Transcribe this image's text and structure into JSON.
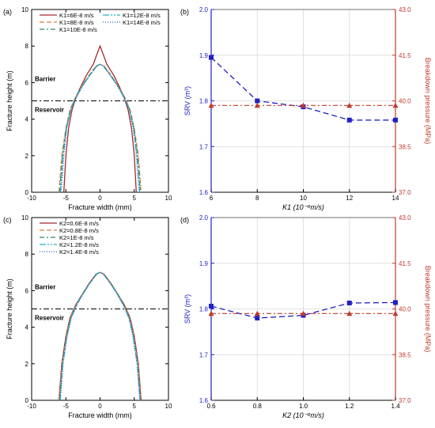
{
  "colors": {
    "axis": "#000000",
    "srv": "#2020c8",
    "bp": "#c0392b",
    "barrier_line": "#000000",
    "grid": "#d8d8d8"
  },
  "chart_data": [
    {
      "type": "line",
      "panel_label": "(a)",
      "xlabel": "Fracture width (mm)",
      "ylabel": "Fracture height (m)",
      "xlim": [
        -10,
        10
      ],
      "ylim": [
        0,
        10
      ],
      "xticks": [
        "-10",
        "-5",
        "0",
        "5",
        "10"
      ],
      "yticks": [
        "0",
        "2",
        "4",
        "6",
        "8",
        "10"
      ],
      "annotations": [
        "Barrier",
        "Reservoir"
      ],
      "interface_height": 5,
      "legend": [
        "K1=6E-8 m/s",
        "K1=8E-8 m/s",
        "K1=10E-8 m/s",
        "K1=12E-8 m/s",
        "K1=14E-8 m/s"
      ],
      "series": [
        {
          "name": "K1=6E-8 m/s",
          "color": "#a52a2a",
          "dash": "",
          "x": [
            -5.3,
            -5.0,
            -4.6,
            -4.1,
            -3.5,
            -2.8,
            -2.0,
            -1.0,
            -0.4,
            0,
            0.4,
            1.0,
            2.0,
            2.8,
            3.5,
            4.1,
            4.6,
            5.0,
            5.3
          ],
          "y": [
            0,
            2,
            3.5,
            4.5,
            5.2,
            5.8,
            6.4,
            7.0,
            7.6,
            8.0,
            7.6,
            7.0,
            6.4,
            5.8,
            5.2,
            4.5,
            3.5,
            2,
            0
          ]
        },
        {
          "name": "K1=8E-8 m/s",
          "color": "#e07b39",
          "dash": "6,3",
          "x": [
            -6.0,
            -5.6,
            -5.0,
            -4.4,
            -3.6,
            -2.7,
            -1.6,
            -0.6,
            0,
            0.6,
            1.6,
            2.7,
            3.6,
            4.4,
            5.0,
            5.6,
            6.0
          ],
          "y": [
            0,
            2,
            3.5,
            4.5,
            5.2,
            5.8,
            6.4,
            6.9,
            7.0,
            6.9,
            6.4,
            5.8,
            5.2,
            4.5,
            3.5,
            2,
            0
          ]
        },
        {
          "name": "K1=10E-8 m/s",
          "color": "#2e8b57",
          "dash": "6,3,2,3",
          "x": [
            -5.9,
            -5.5,
            -4.95,
            -4.35,
            -3.55,
            -2.65,
            -1.55,
            -0.55,
            0,
            0.55,
            1.55,
            2.65,
            3.55,
            4.35,
            4.95,
            5.5,
            5.9
          ],
          "y": [
            0,
            2,
            3.5,
            4.5,
            5.2,
            5.8,
            6.4,
            6.9,
            7.0,
            6.9,
            6.4,
            5.8,
            5.2,
            4.5,
            3.5,
            2,
            0
          ]
        },
        {
          "name": "K1=12E-8 m/s",
          "color": "#20b2c8",
          "dash": "8,2,2,2,2,2",
          "x": [
            -5.8,
            -5.4,
            -4.9,
            -4.3,
            -3.5,
            -2.6,
            -1.5,
            -0.5,
            0,
            0.5,
            1.5,
            2.6,
            3.5,
            4.3,
            4.9,
            5.4,
            5.8
          ],
          "y": [
            0,
            2,
            3.5,
            4.5,
            5.2,
            5.8,
            6.4,
            6.9,
            7.0,
            6.9,
            6.4,
            5.8,
            5.2,
            4.5,
            3.5,
            2,
            0
          ]
        },
        {
          "name": "K1=14E-8 m/s",
          "color": "#3060d0",
          "dash": "1,2",
          "x": [
            -5.7,
            -5.3,
            -4.85,
            -4.25,
            -3.45,
            -2.55,
            -1.5,
            -0.5,
            0,
            0.5,
            1.5,
            2.55,
            3.45,
            4.25,
            4.85,
            5.3,
            5.7
          ],
          "y": [
            0,
            2,
            3.5,
            4.5,
            5.2,
            5.8,
            6.4,
            6.9,
            7.0,
            6.9,
            6.4,
            5.8,
            5.2,
            4.5,
            3.5,
            2,
            0
          ]
        }
      ]
    },
    {
      "type": "line",
      "panel_label": "(b)",
      "xlabel": "K1 (10⁻⁸m/s)",
      "ylabel_left": "SRV (m³)",
      "ylabel_right": "Breakdown pressure (MPa)",
      "x": [
        6,
        8,
        10,
        12,
        14
      ],
      "xlim": [
        6,
        14
      ],
      "xticks": [
        "6",
        "8",
        "10",
        "12",
        "14"
      ],
      "ylim_left": [
        1.6,
        2.0
      ],
      "yticks_left": [
        "1.6",
        "1.7",
        "1.8",
        "1.9",
        "2.0"
      ],
      "ylim_right": [
        37.0,
        43.0
      ],
      "yticks_right": [
        "37.0",
        "38.5",
        "40.0",
        "41.5",
        "43.0"
      ],
      "grid": true,
      "series": [
        {
          "name": "SRV",
          "axis": "left",
          "values": [
            1.895,
            1.8,
            1.787,
            1.758,
            1.758
          ]
        },
        {
          "name": "Breakdown pressure",
          "axis": "right",
          "values": [
            39.85,
            39.85,
            39.85,
            39.85,
            39.85
          ]
        }
      ]
    },
    {
      "type": "line",
      "panel_label": "(c)",
      "xlabel": "Fracture width (mm)",
      "ylabel": "Fracture height (m)",
      "xlim": [
        -10,
        10
      ],
      "ylim": [
        0,
        10
      ],
      "xticks": [
        "-10",
        "-5",
        "0",
        "5",
        "10"
      ],
      "yticks": [
        "0",
        "2",
        "4",
        "6",
        "8",
        "10"
      ],
      "annotations": [
        "Barrier",
        "Reservoir"
      ],
      "interface_height": 5,
      "legend": [
        "K2=0.6E-8 m/s",
        "K2=0.8E-8 m/s",
        "K2=1E-8 m/s",
        "K2=1.2E-8 m/s",
        "K2=1.4E-8 m/s"
      ],
      "series": [
        {
          "name": "K2=0.6E-8 m/s",
          "color": "#a52a2a",
          "dash": "",
          "x": [
            -6.0,
            -5.6,
            -5.0,
            -4.4,
            -3.6,
            -2.6,
            -1.6,
            -0.6,
            0,
            0.6,
            1.6,
            2.6,
            3.6,
            4.4,
            5.0,
            5.6,
            6.0
          ],
          "y": [
            0,
            2,
            3.5,
            4.5,
            5.2,
            5.8,
            6.4,
            6.9,
            7.0,
            6.9,
            6.4,
            5.8,
            5.2,
            4.5,
            3.5,
            2,
            0
          ]
        },
        {
          "name": "K2=0.8E-8 m/s",
          "color": "#e07b39",
          "dash": "6,3",
          "x": [
            -5.95,
            -5.55,
            -4.95,
            -4.35,
            -3.55,
            -2.6,
            -1.6,
            -0.6,
            0,
            0.6,
            1.6,
            2.6,
            3.55,
            4.35,
            4.95,
            5.55,
            5.95
          ],
          "y": [
            0,
            2,
            3.5,
            4.5,
            5.2,
            5.8,
            6.4,
            6.9,
            7.0,
            6.9,
            6.4,
            5.8,
            5.2,
            4.5,
            3.5,
            2,
            0
          ]
        },
        {
          "name": "K2=1E-8 m/s",
          "color": "#2e8b57",
          "dash": "6,3,2,3",
          "x": [
            -5.9,
            -5.5,
            -4.9,
            -4.3,
            -3.5,
            -2.6,
            -1.55,
            -0.55,
            0,
            0.55,
            1.55,
            2.6,
            3.5,
            4.3,
            4.9,
            5.5,
            5.9
          ],
          "y": [
            0,
            2,
            3.5,
            4.5,
            5.2,
            5.8,
            6.4,
            6.9,
            7.0,
            6.9,
            6.4,
            5.8,
            5.2,
            4.5,
            3.5,
            2,
            0
          ]
        },
        {
          "name": "K2=1.2E-8 m/s",
          "color": "#20b2c8",
          "dash": "8,2,2,2,2,2",
          "x": [
            -5.85,
            -5.45,
            -4.85,
            -4.25,
            -3.45,
            -2.55,
            -1.5,
            -0.5,
            0,
            0.5,
            1.5,
            2.55,
            3.45,
            4.25,
            4.85,
            5.45,
            5.85
          ],
          "y": [
            0,
            2,
            3.5,
            4.5,
            5.2,
            5.8,
            6.4,
            6.9,
            7.0,
            6.9,
            6.4,
            5.8,
            5.2,
            4.5,
            3.5,
            2,
            0
          ]
        },
        {
          "name": "K2=1.4E-8 m/s",
          "color": "#3060d0",
          "dash": "1,2",
          "x": [
            -5.8,
            -5.4,
            -4.8,
            -4.2,
            -3.4,
            -2.5,
            -1.5,
            -0.5,
            0,
            0.5,
            1.5,
            2.5,
            3.4,
            4.2,
            4.8,
            5.4,
            5.8
          ],
          "y": [
            0,
            2,
            3.5,
            4.5,
            5.2,
            5.8,
            6.4,
            6.9,
            7.0,
            6.9,
            6.4,
            5.8,
            5.2,
            4.5,
            3.5,
            2,
            0
          ]
        }
      ]
    },
    {
      "type": "line",
      "panel_label": "(d)",
      "xlabel": "K2 (10⁻⁸m/s)",
      "ylabel_left": "SRV (m³)",
      "ylabel_right": "Breakdown pressure (MPa)",
      "x": [
        0.6,
        0.8,
        1.0,
        1.2,
        1.4
      ],
      "xlim": [
        0.6,
        1.4
      ],
      "xticks": [
        "0.6",
        "0.8",
        "1.0",
        "1.2",
        "1.4"
      ],
      "ylim_left": [
        1.6,
        2.0
      ],
      "yticks_left": [
        "1.6",
        "1.7",
        "1.8",
        "1.9",
        "2.0"
      ],
      "ylim_right": [
        37.0,
        43.0
      ],
      "yticks_right": [
        "37.0",
        "38.5",
        "40.0",
        "41.5",
        "43.0"
      ],
      "grid": true,
      "series": [
        {
          "name": "SRV",
          "axis": "left",
          "values": [
            1.806,
            1.78,
            1.786,
            1.813,
            1.814
          ]
        },
        {
          "name": "Breakdown pressure",
          "axis": "right",
          "values": [
            39.85,
            39.85,
            39.85,
            39.85,
            39.85
          ]
        }
      ]
    }
  ]
}
